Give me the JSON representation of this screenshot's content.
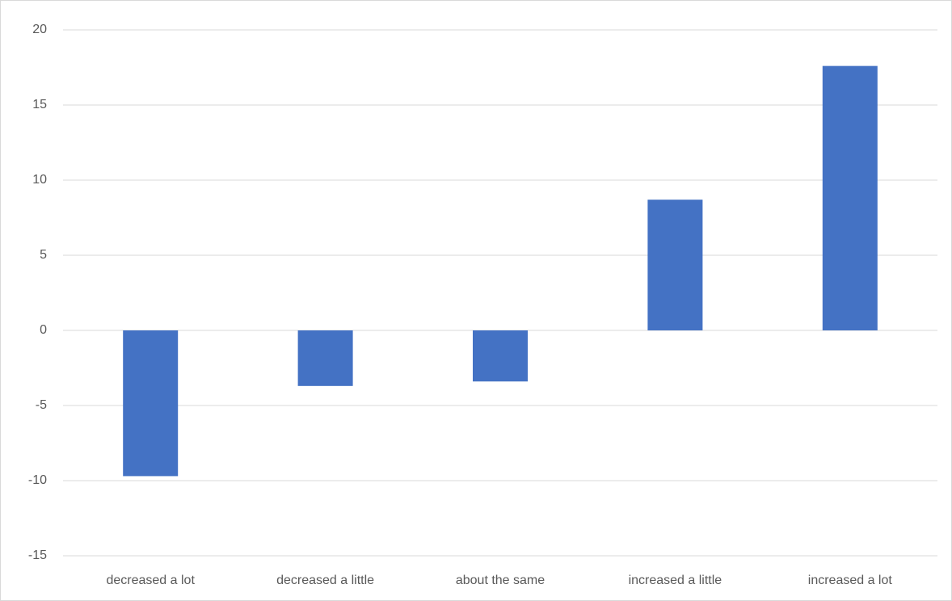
{
  "chart_data": {
    "type": "bar",
    "categories": [
      "decreased a lot",
      "decreased a little",
      "about the same",
      "increased a little",
      "increased a lot"
    ],
    "values": [
      -9.7,
      -3.7,
      -3.4,
      8.7,
      17.6
    ],
    "color": "#4472c4",
    "ylim": [
      -15,
      20
    ],
    "yticks": [
      -15,
      -10,
      -5,
      0,
      5,
      10,
      15,
      20
    ],
    "grid": true
  }
}
